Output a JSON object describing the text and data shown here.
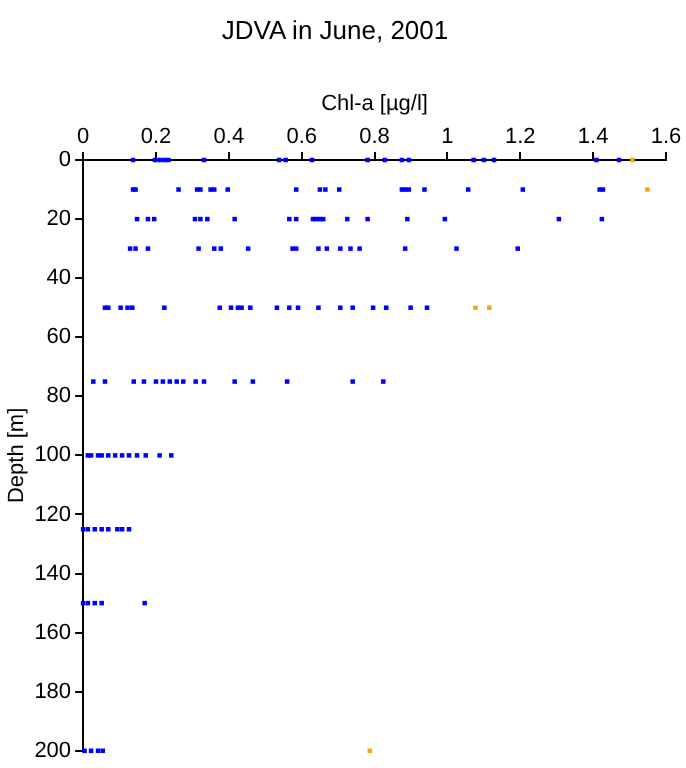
{
  "chart_data": {
    "type": "scatter",
    "title": "JDVA in June, 2001",
    "xlabel": "Chl-a [µg/l]",
    "ylabel": "Depth [m]",
    "xlim": [
      0,
      1.6
    ],
    "xticks": [
      0,
      0.2,
      0.4,
      0.6,
      0.8,
      1,
      1.2,
      1.4,
      1.6
    ],
    "ylim": [
      200,
      0
    ],
    "yticks": [
      0,
      20,
      40,
      60,
      80,
      100,
      120,
      140,
      160,
      180,
      200
    ],
    "grid": false,
    "legend": false,
    "marker": "square",
    "series": [
      {
        "color": "#0000ff",
        "x": [
          0.137,
          0.197,
          0.21,
          0.223,
          0.234,
          0.332,
          0.538,
          0.556,
          0.628,
          0.781,
          0.828,
          0.875,
          0.894,
          1.072,
          1.1,
          1.128,
          1.409,
          1.471,
          0.137,
          0.144,
          0.262,
          0.313,
          0.322,
          0.35,
          0.36,
          0.397,
          0.585,
          0.65,
          0.665,
          0.703,
          0.875,
          0.884,
          0.894,
          0.937,
          1.057,
          1.207,
          1.418,
          1.427,
          0.148,
          0.178,
          0.195,
          0.307,
          0.322,
          0.341,
          0.416,
          0.566,
          0.585,
          0.631,
          0.64,
          0.65,
          0.659,
          0.725,
          0.781,
          0.89,
          0.993,
          1.306,
          1.424,
          0.129,
          0.144,
          0.178,
          0.317,
          0.36,
          0.378,
          0.453,
          0.575,
          0.585,
          0.646,
          0.669,
          0.706,
          0.734,
          0.759,
          0.884,
          1.025,
          1.193,
          0.06,
          0.069,
          0.103,
          0.122,
          0.135,
          0.223,
          0.375,
          0.406,
          0.425,
          0.435,
          0.459,
          0.532,
          0.566,
          0.59,
          0.646,
          0.706,
          0.74,
          0.796,
          0.832,
          0.899,
          0.944,
          0.028,
          0.06,
          0.139,
          0.167,
          0.2,
          0.219,
          0.238,
          0.257,
          0.275,
          0.309,
          0.332,
          0.416,
          0.466,
          0.56,
          0.74,
          0.824,
          0.013,
          0.022,
          0.041,
          0.051,
          0.069,
          0.088,
          0.107,
          0.126,
          0.148,
          0.172,
          0.21,
          0.242,
          0,
          0.013,
          0.032,
          0.051,
          0.069,
          0.094,
          0.107,
          0.126,
          0,
          0.013,
          0.032,
          0.051,
          0.169,
          0.004,
          0.022,
          0.041,
          0.054
        ],
        "values": [
          0,
          0,
          0,
          0,
          0,
          0,
          0,
          0,
          0,
          0,
          0,
          0,
          0,
          0,
          0,
          0,
          0,
          0,
          10,
          10,
          10,
          10,
          10,
          10,
          10,
          10,
          10,
          10,
          10,
          10,
          10,
          10,
          10,
          10,
          10,
          10,
          10,
          10,
          20,
          20,
          20,
          20,
          20,
          20,
          20,
          20,
          20,
          20,
          20,
          20,
          20,
          20,
          20,
          20,
          20,
          20,
          20,
          30,
          30,
          30,
          30,
          30,
          30,
          30,
          30,
          30,
          30,
          30,
          30,
          30,
          30,
          30,
          30,
          30,
          50,
          50,
          50,
          50,
          50,
          50,
          50,
          50,
          50,
          50,
          50,
          50,
          50,
          50,
          50,
          50,
          50,
          50,
          50,
          50,
          50,
          75,
          75,
          75,
          75,
          75,
          75,
          75,
          75,
          75,
          75,
          75,
          75,
          75,
          75,
          75,
          75,
          100,
          100,
          100,
          100,
          100,
          100,
          100,
          100,
          100,
          100,
          100,
          100,
          125,
          125,
          125,
          125,
          125,
          125,
          125,
          125,
          150,
          150,
          150,
          150,
          150,
          200,
          200,
          200,
          200
        ]
      },
      {
        "color": "#ffa500",
        "x": [
          1.508,
          1.549,
          1.077,
          1.115,
          0.787
        ],
        "values": [
          0,
          10,
          50,
          50,
          200
        ]
      }
    ]
  }
}
